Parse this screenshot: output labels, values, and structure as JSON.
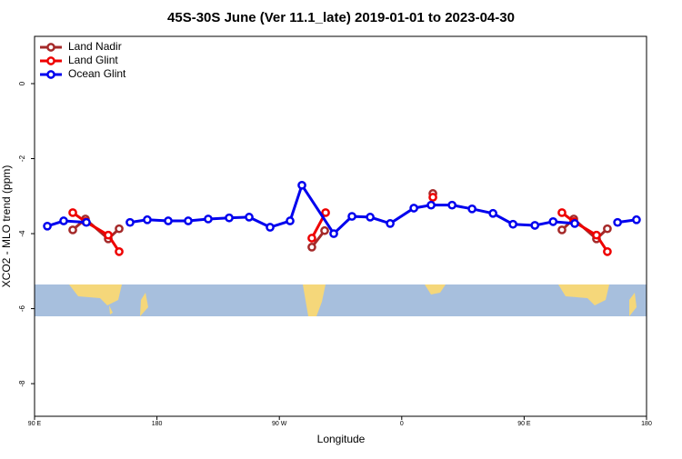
{
  "chart_data": {
    "type": "line",
    "title": "45S-30S June (Ver 11.1_late)   2019-01-01 to 2023-04-30",
    "xlabel": "Longitude",
    "ylabel": "XCO2 - MLO trend (ppm)",
    "xlim": [
      90,
      540
    ],
    "ylim": [
      -8.87,
      1.26
    ],
    "xticks": [
      {
        "value": 90,
        "label": "90 E"
      },
      180,
      {
        "value": 270,
        "label": "90 W"
      },
      {
        "value": 360,
        "label": "0"
      },
      {
        "value": 450,
        "label": "90 E"
      },
      {
        "value": 540,
        "label": "180"
      }
    ],
    "yticks": [
      0,
      -2,
      -4,
      -6,
      -8
    ],
    "legend": "top-left",
    "series": [
      {
        "name": "Land Nadir",
        "color": "#a52a2a",
        "x": [
          118.1,
          127.4,
          144.2,
          152.2,
          null,
          293.9,
          303.3,
          null,
          382.9,
          null,
          477.8,
          486.5,
          503.2,
          511.2
        ],
        "values": [
          -3.9,
          -3.61,
          -4.14,
          -3.87,
          null,
          -4.36,
          -3.92,
          null,
          -2.93,
          null,
          -3.9,
          -3.61,
          -4.14,
          -3.87
        ]
      },
      {
        "name": "Land Glint",
        "color": "#ee0000",
        "x": [
          118.1,
          127.4,
          144.2,
          152.2,
          null,
          293.9,
          304.0,
          null,
          382.9,
          null,
          477.8,
          486.5,
          503.2,
          511.2
        ],
        "values": [
          -3.44,
          -3.68,
          -4.04,
          -4.48,
          null,
          -4.12,
          -3.44,
          null,
          -3.03,
          null,
          -3.44,
          -3.68,
          -4.04,
          -4.48
        ]
      },
      {
        "name": "Ocean Glint",
        "color": "#0000ee",
        "x": [
          99.4,
          111.4,
          128.1,
          null,
          160.2,
          172.9,
          188.3,
          203.0,
          217.7,
          233.1,
          247.8,
          263.2,
          277.9,
          286.6,
          310.0,
          323.4,
          336.8,
          351.5,
          368.9,
          381.6,
          397.0,
          411.7,
          427.1,
          441.8,
          457.9,
          471.3,
          487.2,
          null,
          518.7,
          532.6
        ],
        "values": [
          -3.8,
          -3.66,
          -3.7,
          null,
          -3.7,
          -3.63,
          -3.66,
          -3.66,
          -3.61,
          -3.58,
          -3.56,
          -3.83,
          -3.66,
          -2.71,
          -4.0,
          -3.54,
          -3.56,
          -3.73,
          -3.32,
          -3.24,
          -3.24,
          -3.34,
          -3.46,
          -3.75,
          -3.78,
          -3.68,
          -3.73,
          null,
          -3.7,
          -3.63
        ]
      }
    ]
  }
}
